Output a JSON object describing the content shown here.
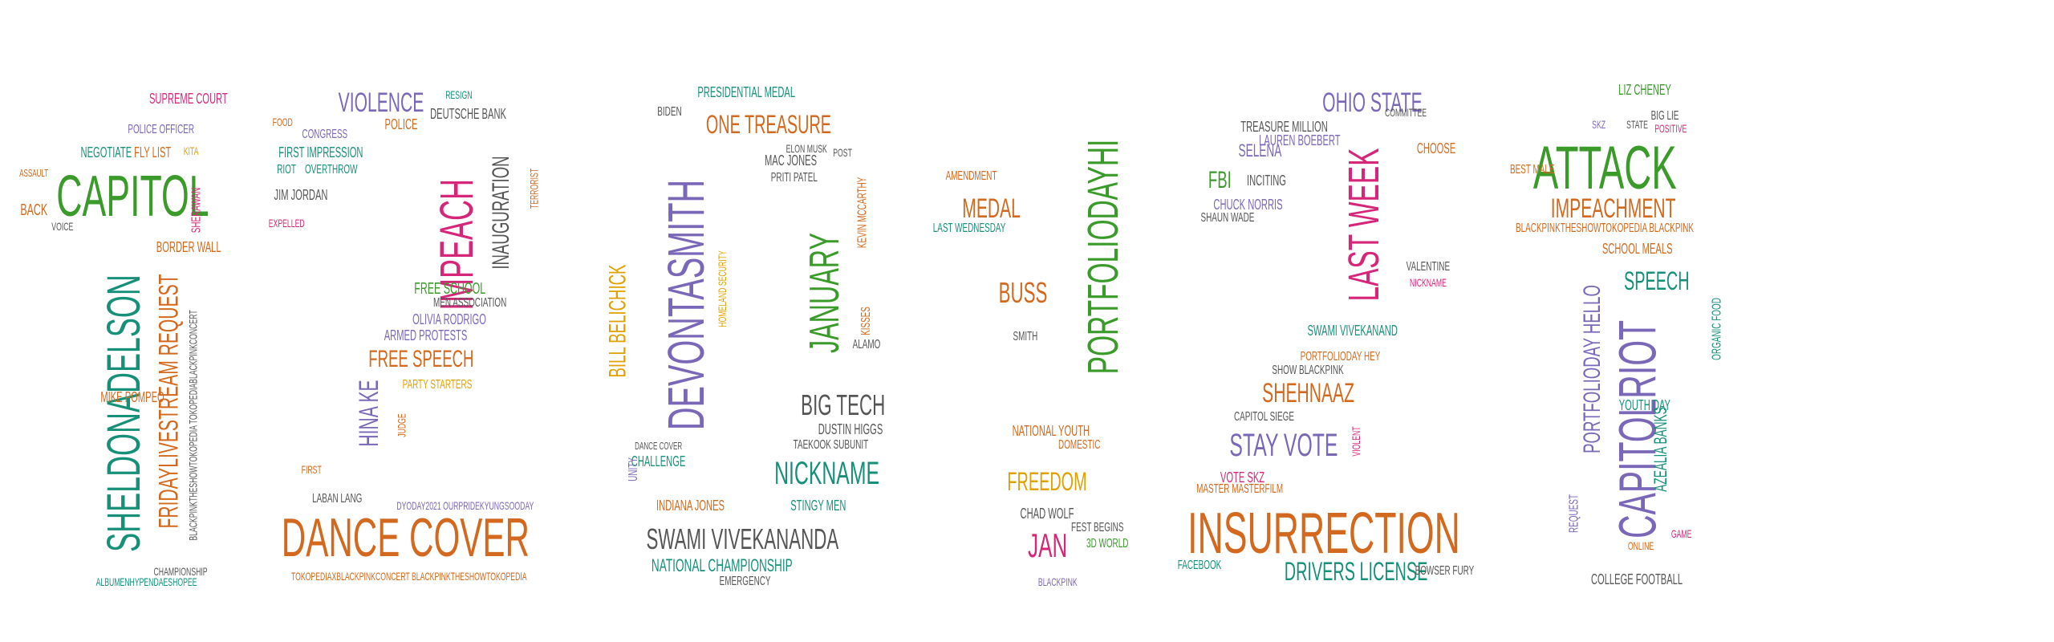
{
  "colors": {
    "green": "#3a9a2a",
    "teal": "#17907a",
    "orange": "#d2691e",
    "magenta": "#d6267a",
    "purple": "#7a67b8",
    "gray": "#555555",
    "yellow": "#e0a000"
  },
  "words": [
    {
      "text": "CAPITOL",
      "color": "green"
    },
    {
      "text": "SHELDONADELSON",
      "color": "teal"
    },
    {
      "text": "FRIDAYLIVESTREAM REQUEST",
      "color": "orange"
    },
    {
      "text": "BLACKPINKTHESHOWTOKOPEDIA TOKOPEDIABLACKPINKCONCERT",
      "color": "gray"
    },
    {
      "text": "SUPREME COURT",
      "color": "magenta"
    },
    {
      "text": "POLICE OFFICER",
      "color": "purple"
    },
    {
      "text": "FLY LIST",
      "color": "orange"
    },
    {
      "text": "KITA",
      "color": "yellow"
    },
    {
      "text": "NEGOTIATE",
      "color": "teal"
    },
    {
      "text": "BORDER WALL",
      "color": "orange"
    },
    {
      "text": "MIKE POMPEO",
      "color": "orange"
    },
    {
      "text": "CHAMPIONSHIP",
      "color": "gray"
    },
    {
      "text": "ALBUMENHYPENDAESHOPEE",
      "color": "teal"
    },
    {
      "text": "BACK",
      "color": "orange"
    },
    {
      "text": "VOICE",
      "color": "gray"
    },
    {
      "text": "ASSAULT",
      "color": "orange"
    },
    {
      "text": "SHERAWAN",
      "color": "magenta"
    },
    {
      "text": "VIOLENCE",
      "color": "purple"
    },
    {
      "text": "IMPEACH",
      "color": "magenta"
    },
    {
      "text": "INAUGURATION",
      "color": "gray"
    },
    {
      "text": "DEUTSCHE BANK",
      "color": "gray"
    },
    {
      "text": "RESIGN",
      "color": "teal"
    },
    {
      "text": "FIRST IMPRESSION",
      "color": "teal"
    },
    {
      "text": "JIM JORDAN",
      "color": "gray"
    },
    {
      "text": "RIOT",
      "color": "teal"
    },
    {
      "text": "OVERTHROW",
      "color": "teal"
    },
    {
      "text": "CONGRESS",
      "color": "purple"
    },
    {
      "text": "FOOD",
      "color": "orange"
    },
    {
      "text": "POLICE",
      "color": "orange"
    },
    {
      "text": "EXPELLED",
      "color": "magenta"
    },
    {
      "text": "TERRORIST",
      "color": "orange"
    },
    {
      "text": "FREE SCHOOL",
      "color": "green"
    },
    {
      "text": "MEN ASSOCIATION",
      "color": "gray"
    },
    {
      "text": "OLIVIA RODRIGO",
      "color": "purple"
    },
    {
      "text": "ARMED PROTESTS",
      "color": "purple"
    },
    {
      "text": "FREE SPEECH",
      "color": "orange"
    },
    {
      "text": "HINA KE",
      "color": "purple"
    },
    {
      "text": "PARTY STARTERS",
      "color": "yellow"
    },
    {
      "text": "JUDGE",
      "color": "orange"
    },
    {
      "text": "DANCE COVER",
      "color": "orange"
    },
    {
      "text": "LABAN LANG",
      "color": "gray"
    },
    {
      "text": "FIRST",
      "color": "orange"
    },
    {
      "text": "TOKOPEDIAXBLACKPINKCONCERT BLACKPINKTHESHOWTOKOPEDIA",
      "color": "orange"
    },
    {
      "text": "DYODAY2021 OURPRIDEKYUNGSOODAY",
      "color": "purple"
    },
    {
      "text": "DEVONTASMITH",
      "color": "purple"
    },
    {
      "text": "ONE TREASURE",
      "color": "orange"
    },
    {
      "text": "JANUARY",
      "color": "green"
    },
    {
      "text": "BILL BELICHICK",
      "color": "yellow"
    },
    {
      "text": "BIG TECH",
      "color": "gray"
    },
    {
      "text": "NICKNAME",
      "color": "teal"
    },
    {
      "text": "SWAMI VIVEKANANDA",
      "color": "gray"
    },
    {
      "text": "NATIONAL CHAMPIONSHIP",
      "color": "teal"
    },
    {
      "text": "EMERGENCY",
      "color": "gray"
    },
    {
      "text": "INDIANA JONES",
      "color": "orange"
    },
    {
      "text": "STINGY MEN",
      "color": "teal"
    },
    {
      "text": "PRESIDENTIAL MEDAL",
      "color": "teal"
    },
    {
      "text": "BIDEN",
      "color": "gray"
    },
    {
      "text": "MAC JONES",
      "color": "gray"
    },
    {
      "text": "PRITI PATEL",
      "color": "gray"
    },
    {
      "text": "DUSTIN HIGGS",
      "color": "gray"
    },
    {
      "text": "TAEKOOK SUBUNIT",
      "color": "gray"
    },
    {
      "text": "KEVIN MCCARTHY",
      "color": "orange"
    },
    {
      "text": "KISSES",
      "color": "orange"
    },
    {
      "text": "ALAMO",
      "color": "gray"
    },
    {
      "text": "CHALLENGE",
      "color": "teal"
    },
    {
      "text": "HOMELAND SECURITY",
      "color": "yellow"
    },
    {
      "text": "UNITY",
      "color": "purple"
    },
    {
      "text": "DANCE COVER",
      "color": "gray"
    },
    {
      "text": "ELON MUSK",
      "color": "gray"
    },
    {
      "text": "POST",
      "color": "gray"
    },
    {
      "text": "PORTFOLIODAYHI",
      "color": "green"
    },
    {
      "text": "MEDAL",
      "color": "orange"
    },
    {
      "text": "BUSS",
      "color": "orange"
    },
    {
      "text": "FREEDOM",
      "color": "yellow"
    },
    {
      "text": "JAN",
      "color": "magenta"
    },
    {
      "text": "NATIONAL YOUTH",
      "color": "orange"
    },
    {
      "text": "LAST WEDNESDAY",
      "color": "teal"
    },
    {
      "text": "AMENDMENT",
      "color": "orange"
    },
    {
      "text": "CHAD WOLF",
      "color": "gray"
    },
    {
      "text": "FEST BEGINS",
      "color": "gray"
    },
    {
      "text": "3D WORLD",
      "color": "green"
    },
    {
      "text": "BLACKPINK",
      "color": "purple"
    },
    {
      "text": "SMITH",
      "color": "gray"
    },
    {
      "text": "DOMESTIC",
      "color": "orange"
    },
    {
      "text": "INSURRECTION",
      "color": "orange"
    },
    {
      "text": "LAST WEEK",
      "color": "magenta"
    },
    {
      "text": "OHIO STATE",
      "color": "purple"
    },
    {
      "text": "TREASURE MILLION",
      "color": "gray"
    },
    {
      "text": "LAUREN BOEBERT",
      "color": "purple"
    },
    {
      "text": "SELENA",
      "color": "purple"
    },
    {
      "text": "FBI",
      "color": "green"
    },
    {
      "text": "INCITING",
      "color": "gray"
    },
    {
      "text": "CHUCK NORRIS",
      "color": "purple"
    },
    {
      "text": "SHAUN WADE",
      "color": "gray"
    },
    {
      "text": "SHEHNAAZ",
      "color": "orange"
    },
    {
      "text": "STAY VOTE",
      "color": "purple"
    },
    {
      "text": "DRIVERS LICENSE",
      "color": "teal"
    },
    {
      "text": "SHOW BLACKPINK",
      "color": "gray"
    },
    {
      "text": "SWAMI VIVEKANAND",
      "color": "teal"
    },
    {
      "text": "PORTFOLIODAY HEY",
      "color": "orange"
    },
    {
      "text": "CAPITOL SIEGE",
      "color": "gray"
    },
    {
      "text": "VALENTINE",
      "color": "gray"
    },
    {
      "text": "NICKNAME",
      "color": "magenta"
    },
    {
      "text": "CHOOSE",
      "color": "orange"
    },
    {
      "text": "COMMITTEE",
      "color": "gray"
    },
    {
      "text": "MASTER MASTERFILM",
      "color": "orange"
    },
    {
      "text": "VOTE SKZ",
      "color": "magenta"
    },
    {
      "text": "FACEBOOK",
      "color": "teal"
    },
    {
      "text": "BOWSER FURY",
      "color": "gray"
    },
    {
      "text": "VIOLENT",
      "color": "magenta"
    },
    {
      "text": "ATTACK",
      "color": "green"
    },
    {
      "text": "IMPEACHMENT",
      "color": "orange"
    },
    {
      "text": "CAPITOLRIOT",
      "color": "purple"
    },
    {
      "text": "PORTFOLIODAY HELLO",
      "color": "purple"
    },
    {
      "text": "SPEECH",
      "color": "teal"
    },
    {
      "text": "LIZ CHENEY",
      "color": "green"
    },
    {
      "text": "BIG LIE",
      "color": "gray"
    },
    {
      "text": "POSITIVE",
      "color": "magenta"
    },
    {
      "text": "SKZ",
      "color": "purple"
    },
    {
      "text": "STATE",
      "color": "gray"
    },
    {
      "text": "BEST MALE",
      "color": "orange"
    },
    {
      "text": "SCHOOL MEALS",
      "color": "orange"
    },
    {
      "text": "AZEALIA BANKS",
      "color": "teal"
    },
    {
      "text": "YOUTH DAY",
      "color": "teal"
    },
    {
      "text": "COLLEGE FOOTBALL",
      "color": "gray"
    },
    {
      "text": "ORGANIC FOOD",
      "color": "teal"
    },
    {
      "text": "GAME",
      "color": "magenta"
    },
    {
      "text": "ONLINE",
      "color": "orange"
    },
    {
      "text": "BLACKPINKTHESHOWTOKOPEDIA BLACKPINK",
      "color": "orange"
    },
    {
      "text": "REQUEST",
      "color": "purple"
    }
  ]
}
